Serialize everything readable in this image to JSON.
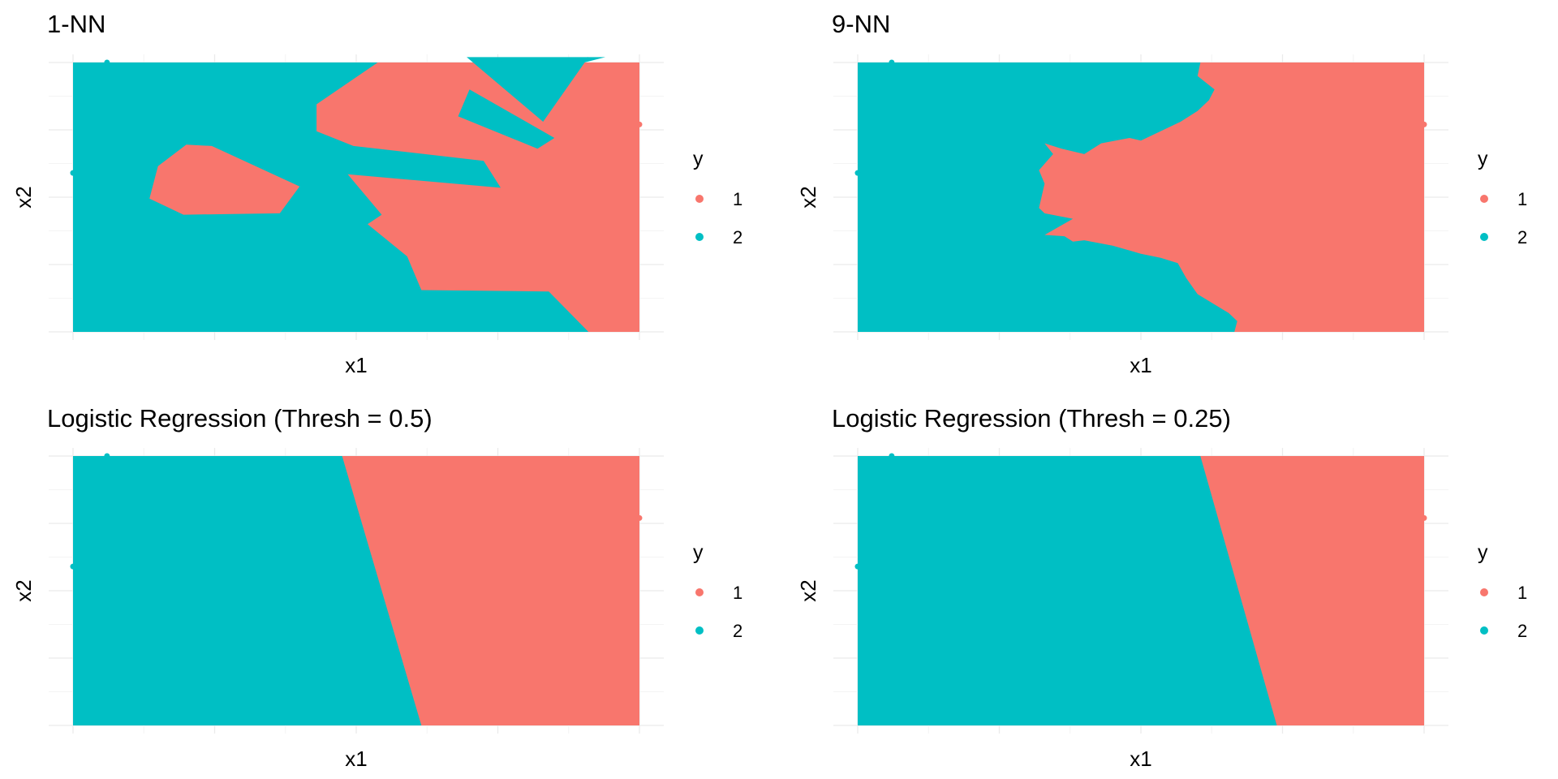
{
  "colors": {
    "class_1": "#F8766D",
    "class_2": "#00BFC4"
  },
  "chart_data": [
    {
      "type": "scatter",
      "title": "1-NN",
      "xlabel": "x1",
      "ylabel": "x2",
      "legend": {
        "title": "y",
        "entries": [
          "1",
          "2"
        ],
        "placement": "right"
      },
      "grid": true,
      "xlim": [
        0,
        1
      ],
      "ylim": [
        0,
        1
      ],
      "background_class": "2",
      "regions": [
        {
          "class": "1",
          "points": [
            [
              0.538,
              1
            ],
            [
              1,
              1
            ],
            [
              1,
              0
            ],
            [
              0.91,
              0
            ],
            [
              0.84,
              0.15
            ],
            [
              0.615,
              0.155
            ],
            [
              0.59,
              0.28
            ],
            [
              0.52,
              0.4
            ],
            [
              0.545,
              0.435
            ],
            [
              0.485,
              0.585
            ],
            [
              0.755,
              0.535
            ],
            [
              0.725,
              0.635
            ],
            [
              0.495,
              0.69
            ],
            [
              0.43,
              0.745
            ],
            [
              0.43,
              0.845
            ],
            [
              0.538,
              1
            ]
          ]
        },
        {
          "class": "2",
          "points": [
            [
              0.695,
              1.02
            ],
            [
              0.83,
              0.78
            ],
            [
              0.81,
              0.95
            ],
            [
              0.94,
              1.02
            ]
          ]
        },
        {
          "class": "2",
          "points": [
            [
              0.68,
              0.8
            ],
            [
              0.82,
              0.68
            ],
            [
              0.85,
              0.72
            ],
            [
              0.7,
              0.9
            ]
          ]
        },
        {
          "class": "1",
          "points": [
            [
              0.135,
              0.495
            ],
            [
              0.15,
              0.615
            ],
            [
              0.2,
              0.695
            ],
            [
              0.245,
              0.69
            ],
            [
              0.4,
              0.54
            ],
            [
              0.365,
              0.44
            ],
            [
              0.195,
              0.435
            ]
          ]
        },
        {
          "class": "2",
          "points": [
            [
              0.72,
              1
            ],
            [
              0.91,
              1.02
            ],
            [
              0.83,
              0.78
            ]
          ]
        }
      ],
      "points": [
        {
          "x": 0.06,
          "y": 1.0,
          "class": "2"
        },
        {
          "x": 1.0,
          "y": 0.77,
          "class": "1"
        },
        {
          "x": 0.0,
          "y": 0.59,
          "class": "2"
        }
      ]
    },
    {
      "type": "scatter",
      "title": "9-NN",
      "xlabel": "x1",
      "ylabel": "x2",
      "legend": {
        "title": "y",
        "entries": [
          "1",
          "2"
        ],
        "placement": "right"
      },
      "grid": true,
      "xlim": [
        0,
        1
      ],
      "ylim": [
        0,
        1
      ],
      "background_class": "2",
      "regions": [
        {
          "class": "1",
          "points": [
            [
              0.605,
              1
            ],
            [
              1,
              1
            ],
            [
              1,
              0
            ],
            [
              0.665,
              0
            ],
            [
              0.67,
              0.04
            ],
            [
              0.655,
              0.07
            ],
            [
              0.6,
              0.14
            ],
            [
              0.58,
              0.2
            ],
            [
              0.565,
              0.255
            ],
            [
              0.535,
              0.275
            ],
            [
              0.5,
              0.29
            ],
            [
              0.45,
              0.32
            ],
            [
              0.4,
              0.34
            ],
            [
              0.38,
              0.335
            ],
            [
              0.365,
              0.355
            ],
            [
              0.33,
              0.36
            ],
            [
              0.38,
              0.42
            ],
            [
              0.33,
              0.44
            ],
            [
              0.32,
              0.46
            ],
            [
              0.33,
              0.55
            ],
            [
              0.32,
              0.6
            ],
            [
              0.345,
              0.66
            ],
            [
              0.33,
              0.7
            ],
            [
              0.36,
              0.68
            ],
            [
              0.4,
              0.66
            ],
            [
              0.43,
              0.7
            ],
            [
              0.48,
              0.72
            ],
            [
              0.5,
              0.71
            ],
            [
              0.57,
              0.78
            ],
            [
              0.6,
              0.82
            ],
            [
              0.62,
              0.86
            ],
            [
              0.63,
              0.9
            ],
            [
              0.6,
              0.95
            ],
            [
              0.605,
              1
            ]
          ]
        }
      ],
      "points": [
        {
          "x": 0.06,
          "y": 1.0,
          "class": "2"
        },
        {
          "x": 1.0,
          "y": 0.77,
          "class": "1"
        },
        {
          "x": 0.0,
          "y": 0.59,
          "class": "2"
        }
      ]
    },
    {
      "type": "scatter",
      "title": "Logistic Regression (Thresh = 0.5)",
      "xlabel": "x1",
      "ylabel": "x2",
      "legend": {
        "title": "y",
        "entries": [
          "1",
          "2"
        ],
        "placement": "right"
      },
      "grid": true,
      "xlim": [
        0,
        1
      ],
      "ylim": [
        0,
        1
      ],
      "background_class": "2",
      "regions": [
        {
          "class": "1",
          "points": [
            [
              0.475,
              1
            ],
            [
              1,
              1
            ],
            [
              1,
              0
            ],
            [
              0.615,
              0
            ]
          ]
        }
      ],
      "points": [
        {
          "x": 0.06,
          "y": 1.0,
          "class": "2"
        },
        {
          "x": 1.0,
          "y": 0.77,
          "class": "1"
        },
        {
          "x": 0.0,
          "y": 0.59,
          "class": "2"
        }
      ]
    },
    {
      "type": "scatter",
      "title": "Logistic Regression (Thresh = 0.25)",
      "xlabel": "x1",
      "ylabel": "x2",
      "legend": {
        "title": "y",
        "entries": [
          "1",
          "2"
        ],
        "placement": "right"
      },
      "grid": true,
      "xlim": [
        0,
        1
      ],
      "ylim": [
        0,
        1
      ],
      "background_class": "2",
      "regions": [
        {
          "class": "1",
          "points": [
            [
              0.605,
              1
            ],
            [
              1,
              1
            ],
            [
              1,
              0
            ],
            [
              0.74,
              0
            ]
          ]
        }
      ],
      "points": [
        {
          "x": 0.06,
          "y": 1.0,
          "class": "2"
        },
        {
          "x": 1.0,
          "y": 0.77,
          "class": "1"
        },
        {
          "x": 0.0,
          "y": 0.59,
          "class": "2"
        }
      ]
    }
  ]
}
